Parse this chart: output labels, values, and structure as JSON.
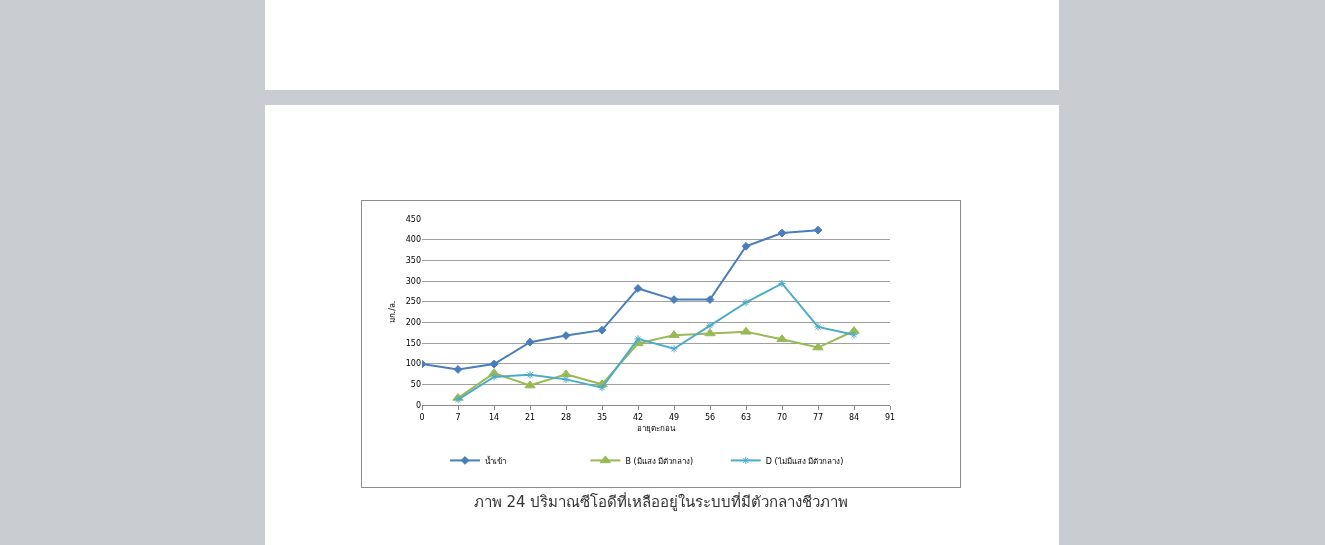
{
  "chart_data": {
    "type": "line",
    "xlabel": "อายุตะกอน",
    "ylabel": "มก./ล.",
    "xlim": [
      0,
      91
    ],
    "xticks": [
      0,
      7,
      14,
      21,
      28,
      35,
      42,
      49,
      56,
      63,
      70,
      77,
      84,
      91
    ],
    "ylim": [
      0,
      450
    ],
    "yticks": [
      0,
      50,
      100,
      150,
      200,
      250,
      300,
      350,
      400,
      450
    ],
    "grid": "y",
    "legend": "bottom",
    "series": [
      {
        "name": "น้ำเข้า",
        "color": "#4a7ebb",
        "marker": "diamond",
        "x": [
          0,
          7,
          14,
          21,
          28,
          35,
          42,
          49,
          56,
          63,
          70,
          77
        ],
        "values": [
          99,
          86,
          99,
          152,
          168,
          181,
          282,
          255,
          255,
          384,
          416,
          423
        ]
      },
      {
        "name": "B (มีแสง มีตัวกลาง)",
        "color": "#98b954",
        "marker": "triangle",
        "x": [
          7,
          14,
          21,
          28,
          35,
          42,
          49,
          56,
          63,
          70,
          77,
          84
        ],
        "values": [
          17,
          77,
          47,
          74,
          50,
          149,
          169,
          173,
          177,
          159,
          139,
          179
        ]
      },
      {
        "name": "D (ไม่มีแสง มีตัวกลาง)",
        "color": "#4bacc6",
        "marker": "cross",
        "x": [
          7,
          14,
          21,
          28,
          35,
          42,
          49,
          56,
          63,
          70,
          77,
          84
        ],
        "values": [
          13,
          68,
          73,
          62,
          42,
          160,
          136,
          192,
          248,
          294,
          189,
          170
        ]
      }
    ],
    "annotations": [
      "ภาพ 24 ปริมาณซีโอดีที่เหลืออยู่ในระบบที่มีตัวกลางชีวภาพ"
    ]
  }
}
